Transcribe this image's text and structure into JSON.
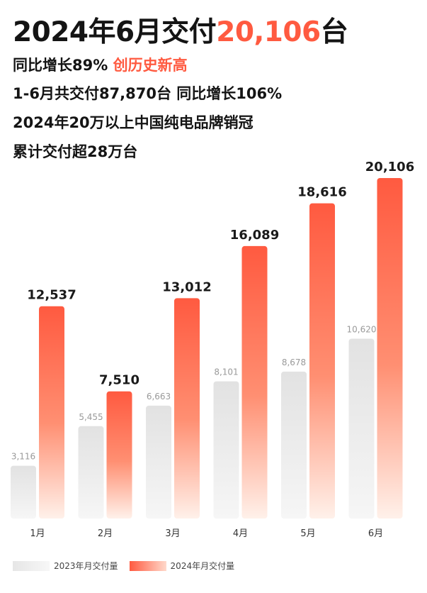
{
  "headline": {
    "title_prefix": "2024年6月交付",
    "title_highlight": "20,106",
    "title_suffix": "台",
    "line1_prefix": "同比增长89%",
    "line1_highlight": "创历史新高",
    "line2": "1-6月共交付87,870台 同比增长106%",
    "line3": "2024年20万以上中国纯电品牌销冠",
    "line4": "累计交付超28万台"
  },
  "colors": {
    "accent": "#ff5a40",
    "bar_2023": "#e4e4e4",
    "bar_2024": "#ff5a40",
    "label_2023": "#9a9a9a",
    "label_2024": "#1a1a1a"
  },
  "chart_data": {
    "type": "bar",
    "categories": [
      "1月",
      "2月",
      "3月",
      "4月",
      "5月",
      "6月"
    ],
    "series": [
      {
        "name": "2023年月交付量",
        "values": [
          3116,
          5455,
          6663,
          8101,
          8678,
          10620
        ],
        "labels": [
          "3,116",
          "5,455",
          "6,663",
          "8,101",
          "8,678",
          "10,620"
        ]
      },
      {
        "name": "2024年月交付量",
        "values": [
          12537,
          7510,
          13012,
          16089,
          18616,
          20106
        ],
        "labels": [
          "12,537",
          "7,510",
          "13,012",
          "16,089",
          "18,616",
          "20,106"
        ]
      }
    ],
    "title": "2024年6月交付20,106台",
    "xlabel": "",
    "ylabel": "",
    "ylim": [
      0,
      20106
    ],
    "grid": false,
    "legend_position": "bottom-left"
  }
}
